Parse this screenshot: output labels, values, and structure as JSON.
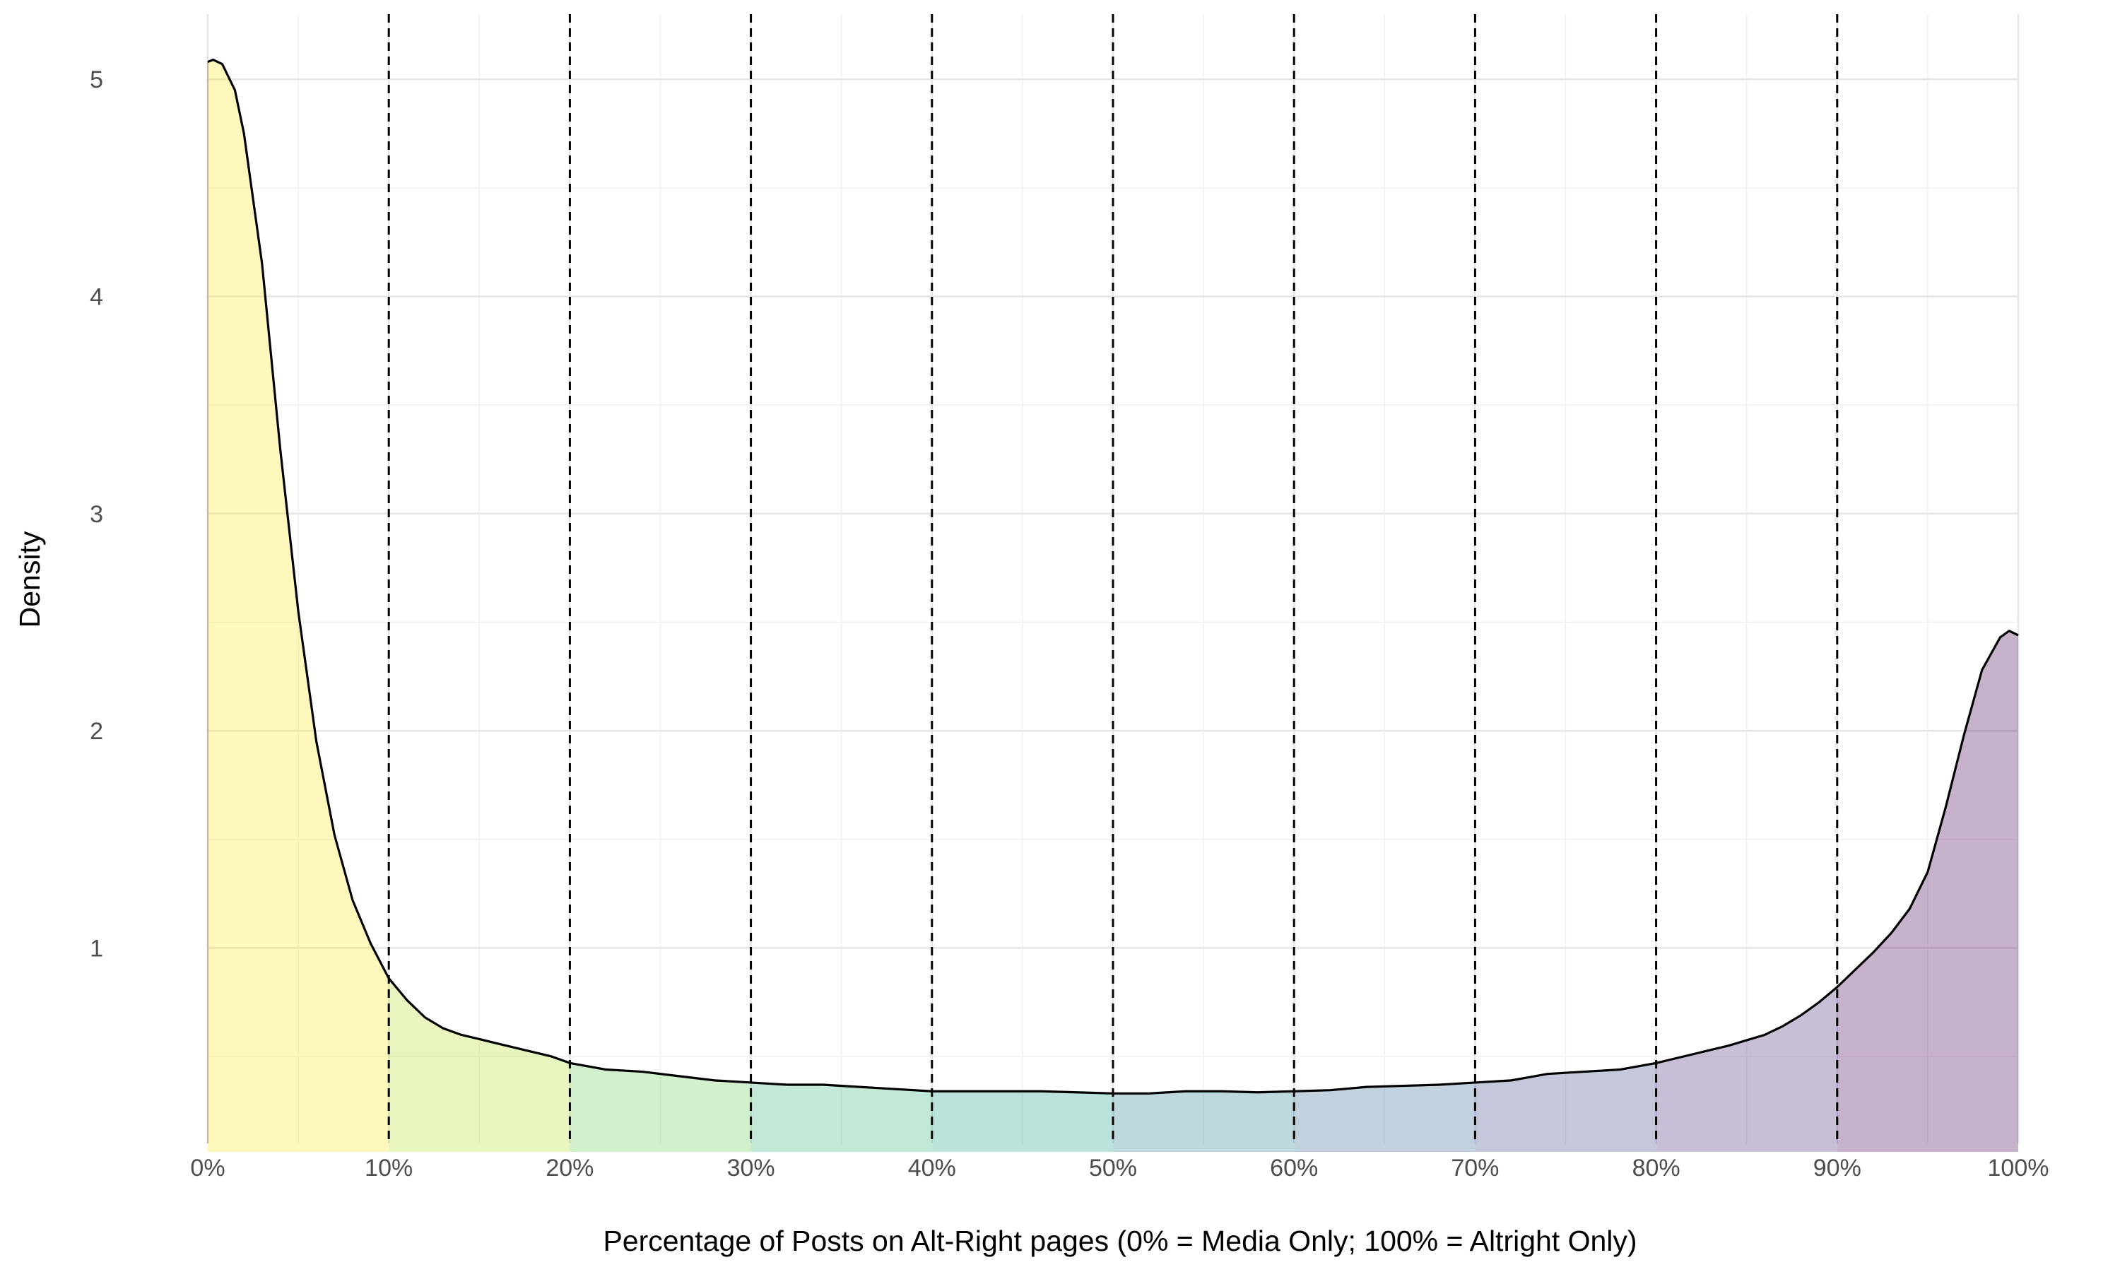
{
  "chart_data": {
    "type": "area",
    "title": "",
    "xlabel": "Percentage of Posts on Alt-Right pages (0% = Media Only; 100% = Altright Only)",
    "ylabel": "Density",
    "xlim": [
      0,
      100
    ],
    "ylim": [
      0.1,
      5.3
    ],
    "x_ticks": [
      {
        "value": 0,
        "label": "0%"
      },
      {
        "value": 10,
        "label": "10%"
      },
      {
        "value": 20,
        "label": "20%"
      },
      {
        "value": 30,
        "label": "30%"
      },
      {
        "value": 40,
        "label": "40%"
      },
      {
        "value": 50,
        "label": "50%"
      },
      {
        "value": 60,
        "label": "60%"
      },
      {
        "value": 70,
        "label": "70%"
      },
      {
        "value": 80,
        "label": "80%"
      },
      {
        "value": 90,
        "label": "90%"
      },
      {
        "value": 100,
        "label": "100%"
      }
    ],
    "y_ticks": [
      {
        "value": 1,
        "label": "1"
      },
      {
        "value": 2,
        "label": "2"
      },
      {
        "value": 3,
        "label": "3"
      },
      {
        "value": 4,
        "label": "4"
      },
      {
        "value": 5,
        "label": "5"
      }
    ],
    "grid": true,
    "legend": "none",
    "dashed_vlines": [
      10,
      20,
      30,
      40,
      50,
      60,
      70,
      80,
      90
    ],
    "band_colors": [
      "#FDE725",
      "#FDE725",
      "#B5DE2B",
      "#6ECE58",
      "#35B779",
      "#1F9E89",
      "#26828E",
      "#31688E",
      "#3E4989",
      "#482878",
      "#440154"
    ],
    "band_opacity": 0.3,
    "curve_color": "#000000",
    "series": [
      {
        "x": [
          0,
          0.3,
          0.8,
          1.5,
          2,
          3,
          4,
          5,
          6,
          7,
          8,
          9,
          10,
          11,
          12,
          13,
          14,
          15,
          16,
          17,
          18,
          19,
          20,
          22,
          24,
          26,
          28,
          30,
          32,
          34,
          36,
          38,
          40,
          42,
          44,
          46,
          48,
          50,
          52,
          54,
          56,
          58,
          60,
          62,
          64,
          66,
          68,
          70,
          72,
          74,
          76,
          78,
          80,
          82,
          84,
          86,
          87,
          88,
          89,
          90,
          91,
          92,
          93,
          94,
          95,
          96,
          97,
          98,
          99,
          99.5,
          100
        ],
        "values": [
          5.08,
          5.09,
          5.07,
          4.95,
          4.75,
          4.15,
          3.3,
          2.55,
          1.95,
          1.52,
          1.22,
          1.02,
          0.86,
          0.76,
          0.68,
          0.63,
          0.6,
          0.58,
          0.56,
          0.54,
          0.52,
          0.5,
          0.47,
          0.44,
          0.43,
          0.41,
          0.39,
          0.38,
          0.37,
          0.37,
          0.36,
          0.35,
          0.34,
          0.34,
          0.34,
          0.34,
          0.335,
          0.33,
          0.33,
          0.34,
          0.34,
          0.335,
          0.34,
          0.345,
          0.36,
          0.365,
          0.37,
          0.38,
          0.39,
          0.42,
          0.43,
          0.44,
          0.47,
          0.51,
          0.55,
          0.6,
          0.64,
          0.69,
          0.75,
          0.82,
          0.9,
          0.98,
          1.07,
          1.18,
          1.35,
          1.65,
          1.98,
          2.28,
          2.43,
          2.46,
          2.44
        ]
      }
    ]
  }
}
